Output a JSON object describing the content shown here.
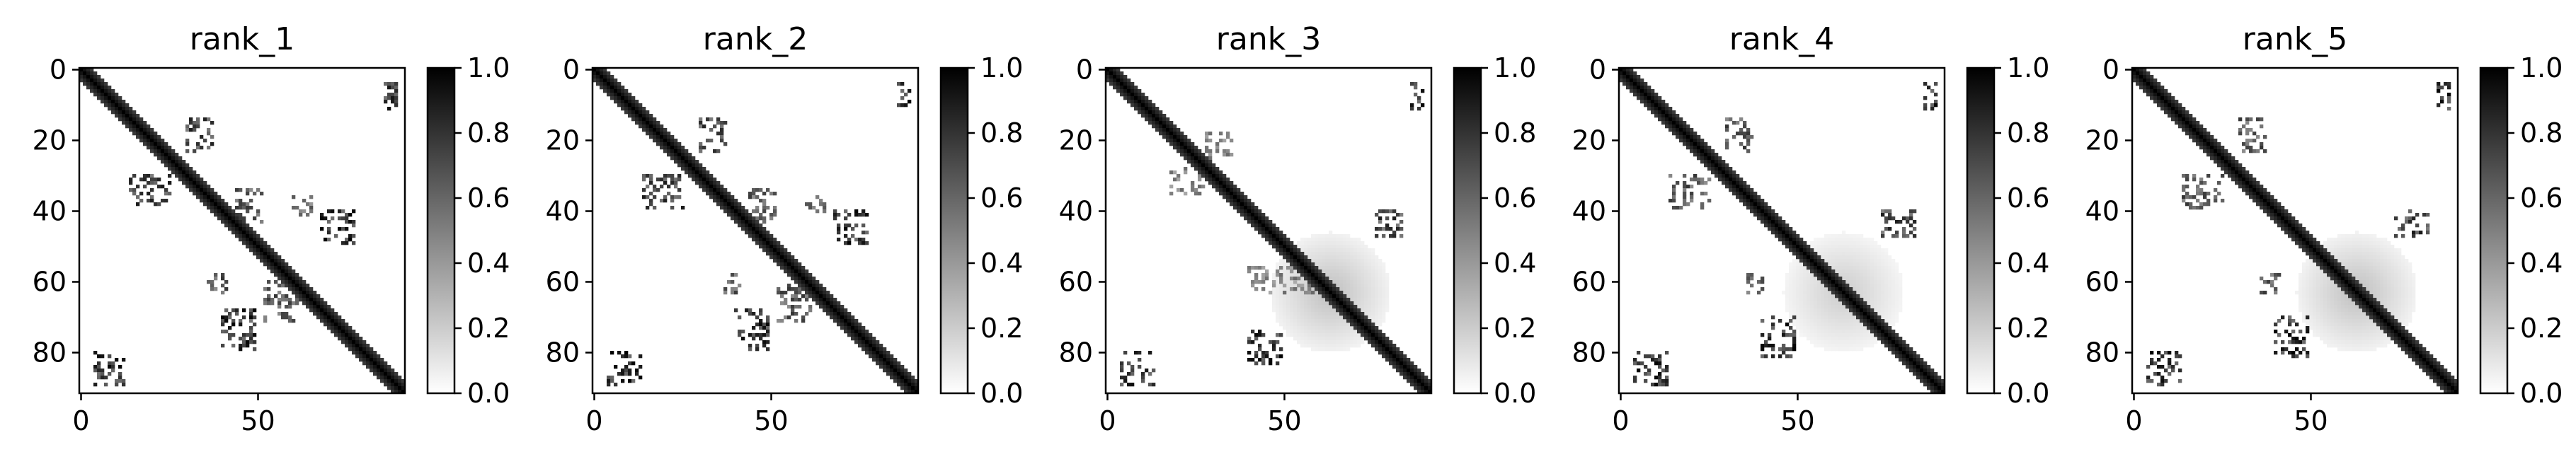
{
  "chart_data": [
    {
      "type": "heatmap",
      "title": "rank_1",
      "colormap": "gray_r",
      "x_range": [
        0,
        92
      ],
      "y_range": [
        0,
        92
      ],
      "x_ticks": [
        0,
        50
      ],
      "y_ticks": [
        0,
        20,
        40,
        60,
        80
      ],
      "colorbar": {
        "range": [
          0.0,
          1.0
        ],
        "ticks": [
          "0.0",
          "0.2",
          "0.4",
          "0.6",
          "0.8",
          "1.0"
        ]
      },
      "diagonal": {
        "band_width": 3,
        "value": 1.0
      },
      "contact_blocks": [
        {
          "x": [
            86,
            90
          ],
          "y": [
            4,
            12
          ],
          "value": 1.0
        },
        {
          "x": [
            30,
            38
          ],
          "y": [
            14,
            24
          ],
          "value": 0.9
        },
        {
          "x": [
            14,
            26
          ],
          "y": [
            30,
            40
          ],
          "value": 0.9
        },
        {
          "x": [
            44,
            52
          ],
          "y": [
            34,
            44
          ],
          "value": 0.8
        },
        {
          "x": [
            68,
            78
          ],
          "y": [
            40,
            50
          ],
          "value": 1.0
        },
        {
          "x": [
            40,
            50
          ],
          "y": [
            68,
            80
          ],
          "value": 1.0
        },
        {
          "x": [
            52,
            62
          ],
          "y": [
            60,
            72
          ],
          "value": 0.8
        },
        {
          "x": [
            4,
            14
          ],
          "y": [
            80,
            90
          ],
          "value": 1.0
        },
        {
          "x": [
            36,
            42
          ],
          "y": [
            58,
            64
          ],
          "value": 0.8
        },
        {
          "x": [
            60,
            66
          ],
          "y": [
            36,
            42
          ],
          "value": 0.7
        }
      ],
      "diffuse_region": null
    },
    {
      "type": "heatmap",
      "title": "rank_2",
      "colormap": "gray_r",
      "x_range": [
        0,
        92
      ],
      "y_range": [
        0,
        92
      ],
      "x_ticks": [
        0,
        50
      ],
      "y_ticks": [
        0,
        20,
        40,
        60,
        80
      ],
      "colorbar": {
        "range": [
          0.0,
          1.0
        ],
        "ticks": [
          "0.0",
          "0.2",
          "0.4",
          "0.6",
          "0.8",
          "1.0"
        ]
      },
      "diagonal": {
        "band_width": 3,
        "value": 1.0
      },
      "contact_blocks": [
        {
          "x": [
            86,
            90
          ],
          "y": [
            4,
            12
          ],
          "value": 1.0
        },
        {
          "x": [
            30,
            38
          ],
          "y": [
            14,
            24
          ],
          "value": 0.9
        },
        {
          "x": [
            14,
            26
          ],
          "y": [
            30,
            40
          ],
          "value": 0.9
        },
        {
          "x": [
            44,
            52
          ],
          "y": [
            34,
            44
          ],
          "value": 0.8
        },
        {
          "x": [
            68,
            78
          ],
          "y": [
            40,
            50
          ],
          "value": 1.0
        },
        {
          "x": [
            40,
            50
          ],
          "y": [
            68,
            80
          ],
          "value": 1.0
        },
        {
          "x": [
            52,
            62
          ],
          "y": [
            60,
            72
          ],
          "value": 0.8
        },
        {
          "x": [
            4,
            14
          ],
          "y": [
            80,
            90
          ],
          "value": 1.0
        },
        {
          "x": [
            36,
            42
          ],
          "y": [
            58,
            64
          ],
          "value": 0.8
        },
        {
          "x": [
            60,
            66
          ],
          "y": [
            36,
            42
          ],
          "value": 0.7
        }
      ],
      "diffuse_region": null
    },
    {
      "type": "heatmap",
      "title": "rank_3",
      "colormap": "gray_r",
      "x_range": [
        0,
        92
      ],
      "y_range": [
        0,
        92
      ],
      "x_ticks": [
        0,
        50
      ],
      "y_ticks": [
        0,
        20,
        40,
        60,
        80
      ],
      "colorbar": {
        "range": [
          0.0,
          1.0
        ],
        "ticks": [
          "0.0",
          "0.2",
          "0.4",
          "0.6",
          "0.8",
          "1.0"
        ]
      },
      "diagonal": {
        "band_width": 3,
        "value": 1.0
      },
      "contact_blocks": [
        {
          "x": [
            86,
            90
          ],
          "y": [
            4,
            12
          ],
          "value": 1.0
        },
        {
          "x": [
            28,
            36
          ],
          "y": [
            18,
            26
          ],
          "value": 0.6
        },
        {
          "x": [
            18,
            28
          ],
          "y": [
            28,
            36
          ],
          "value": 0.6
        },
        {
          "x": [
            76,
            84
          ],
          "y": [
            40,
            48
          ],
          "value": 0.9
        },
        {
          "x": [
            40,
            50
          ],
          "y": [
            74,
            84
          ],
          "value": 1.0
        },
        {
          "x": [
            40,
            60
          ],
          "y": [
            56,
            64
          ],
          "value": 0.6
        },
        {
          "x": [
            4,
            14
          ],
          "y": [
            80,
            90
          ],
          "value": 1.0
        }
      ],
      "diffuse_region": {
        "x": [
          46,
          80
        ],
        "y": [
          46,
          80
        ],
        "value": 0.25
      }
    },
    {
      "type": "heatmap",
      "title": "rank_4",
      "colormap": "gray_r",
      "x_range": [
        0,
        92
      ],
      "y_range": [
        0,
        92
      ],
      "x_ticks": [
        0,
        50
      ],
      "y_ticks": [
        0,
        20,
        40,
        60,
        80
      ],
      "colorbar": {
        "range": [
          0.0,
          1.0
        ],
        "ticks": [
          "0.0",
          "0.2",
          "0.4",
          "0.6",
          "0.8",
          "1.0"
        ]
      },
      "diagonal": {
        "band_width": 3,
        "value": 1.0
      },
      "contact_blocks": [
        {
          "x": [
            86,
            90
          ],
          "y": [
            4,
            12
          ],
          "value": 1.0
        },
        {
          "x": [
            30,
            38
          ],
          "y": [
            14,
            24
          ],
          "value": 0.8
        },
        {
          "x": [
            14,
            26
          ],
          "y": [
            30,
            40
          ],
          "value": 0.8
        },
        {
          "x": [
            74,
            84
          ],
          "y": [
            40,
            48
          ],
          "value": 0.9
        },
        {
          "x": [
            40,
            50
          ],
          "y": [
            70,
            82
          ],
          "value": 1.0
        },
        {
          "x": [
            36,
            42
          ],
          "y": [
            58,
            64
          ],
          "value": 0.8
        },
        {
          "x": [
            4,
            14
          ],
          "y": [
            80,
            90
          ],
          "value": 1.0
        }
      ],
      "diffuse_region": {
        "x": [
          46,
          80
        ],
        "y": [
          46,
          80
        ],
        "value": 0.2
      }
    },
    {
      "type": "heatmap",
      "title": "rank_5",
      "colormap": "gray_r",
      "x_range": [
        0,
        92
      ],
      "y_range": [
        0,
        92
      ],
      "x_ticks": [
        0,
        50
      ],
      "y_ticks": [
        0,
        20,
        40,
        60,
        80
      ],
      "colorbar": {
        "range": [
          0.0,
          1.0
        ],
        "ticks": [
          "0.0",
          "0.2",
          "0.4",
          "0.6",
          "0.8",
          "1.0"
        ]
      },
      "diagonal": {
        "band_width": 3,
        "value": 1.0
      },
      "contact_blocks": [
        {
          "x": [
            86,
            90
          ],
          "y": [
            4,
            12
          ],
          "value": 1.0
        },
        {
          "x": [
            30,
            38
          ],
          "y": [
            14,
            24
          ],
          "value": 0.8
        },
        {
          "x": [
            14,
            26
          ],
          "y": [
            30,
            40
          ],
          "value": 0.8
        },
        {
          "x": [
            74,
            84
          ],
          "y": [
            40,
            48
          ],
          "value": 0.9
        },
        {
          "x": [
            40,
            50
          ],
          "y": [
            70,
            82
          ],
          "value": 1.0
        },
        {
          "x": [
            36,
            42
          ],
          "y": [
            58,
            64
          ],
          "value": 0.8
        },
        {
          "x": [
            4,
            14
          ],
          "y": [
            80,
            90
          ],
          "value": 1.0
        }
      ],
      "diffuse_region": {
        "x": [
          46,
          80
        ],
        "y": [
          46,
          80
        ],
        "value": 0.25
      }
    }
  ]
}
